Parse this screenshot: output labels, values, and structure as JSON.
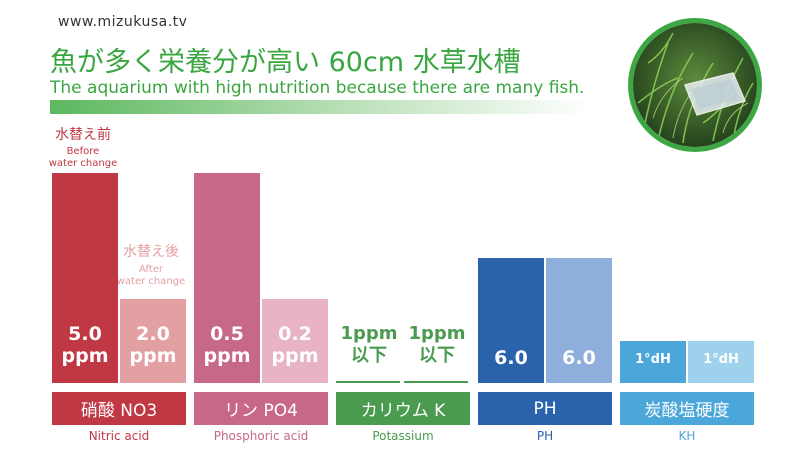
{
  "header": {
    "site_url": "www.mizukusa.tv",
    "title_jp": "魚が多く栄養分が高い 60cm 水草水槽",
    "title_en": "The aquarium with high nutrition because there are many fish."
  },
  "photo": {
    "icon": "aquarium-plants-photo"
  },
  "labels": {
    "before_jp": "水替え前",
    "before_en": "Before\nwater change",
    "after_jp": "水替え後",
    "after_en": "After\nwater change"
  },
  "colors": {
    "nitric_before": "#c03843",
    "nitric_after": "#e2a0a2",
    "phosphoric_before": "#c76888",
    "phosphoric_after": "#e8b4c5",
    "potassium": "#4a9b50",
    "ph_before": "#2a63ab",
    "ph_after": "#8eaedb",
    "kh_before": "#4ba6d9",
    "kh_after": "#9fd0ec"
  },
  "chart_data": {
    "type": "bar",
    "title": "魚が多く栄養分が高い 60cm 水草水槽",
    "series": [
      {
        "name": "水替え前 Before water change"
      },
      {
        "name": "水替え後 After water change"
      }
    ],
    "groups": [
      {
        "label_jp": "硝酸 NO3",
        "label_en": "Nitric acid",
        "before": {
          "value": 5.0,
          "display_value": "5.0",
          "unit": "ppm"
        },
        "after": {
          "value": 2.0,
          "display_value": "2.0",
          "unit": "ppm"
        }
      },
      {
        "label_jp": "リン PO4",
        "label_en": "Phosphoric acid",
        "before": {
          "value": 0.5,
          "display_value": "0.5",
          "unit": "ppm"
        },
        "after": {
          "value": 0.2,
          "display_value": "0.2",
          "unit": "ppm"
        }
      },
      {
        "label_jp": "カリウム K",
        "label_en": "Potassium",
        "before": {
          "value": 1,
          "display_value": "1ppm",
          "unit": "以下"
        },
        "after": {
          "value": 1,
          "display_value": "1ppm",
          "unit": "以下"
        }
      },
      {
        "label_jp": "PH",
        "label_en": "PH",
        "before": {
          "value": 6.0,
          "display_value": "6.0",
          "unit": ""
        },
        "after": {
          "value": 6.0,
          "display_value": "6.0",
          "unit": ""
        }
      },
      {
        "label_jp": "炭酸塩硬度",
        "label_en": "KH",
        "before": {
          "value": 1,
          "display_value": "1°dH",
          "unit": ""
        },
        "after": {
          "value": 1,
          "display_value": "1°dH",
          "unit": ""
        }
      }
    ]
  }
}
